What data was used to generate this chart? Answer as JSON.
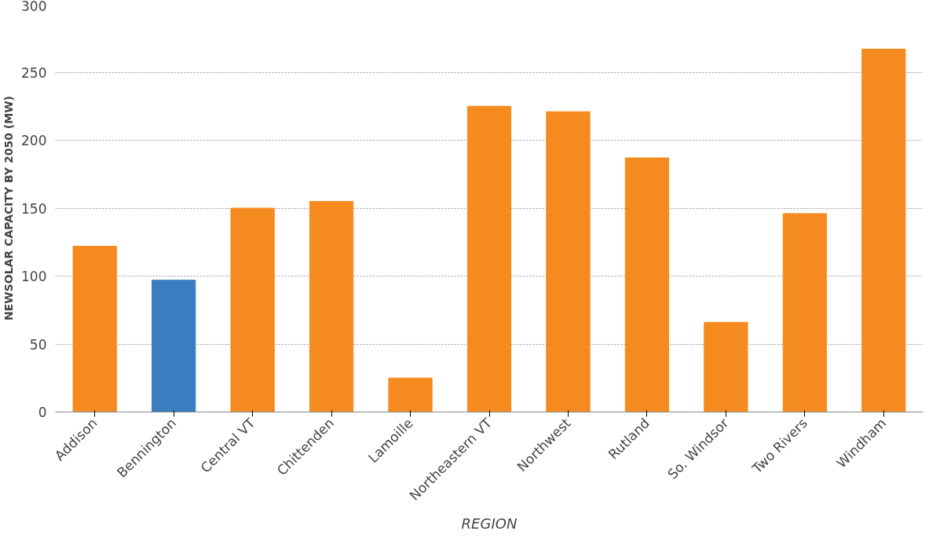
{
  "chart_data": {
    "type": "bar",
    "xlabel": "REGION",
    "ylabel": "NEWSOLAR CAPACITY BY 2050 (MW)",
    "categories": [
      "Addison",
      "Bennington",
      "Central VT",
      "Chittenden",
      "Lamoille",
      "Northeastern VT",
      "Northwest",
      "Rutland",
      "So. Windsor",
      "Two Rivers",
      "Windham"
    ],
    "values": [
      122,
      97,
      150,
      155,
      25,
      225,
      221,
      187,
      66,
      146,
      267
    ],
    "colors": [
      "#f58b1f",
      "#3a7dc1",
      "#f58b1f",
      "#f58b1f",
      "#f58b1f",
      "#f58b1f",
      "#f58b1f",
      "#f58b1f",
      "#f58b1f",
      "#f58b1f",
      "#f58b1f"
    ],
    "ylim": [
      0,
      300
    ],
    "yticks": [
      0,
      50,
      100,
      150,
      200,
      250,
      300
    ],
    "grid": "y"
  }
}
